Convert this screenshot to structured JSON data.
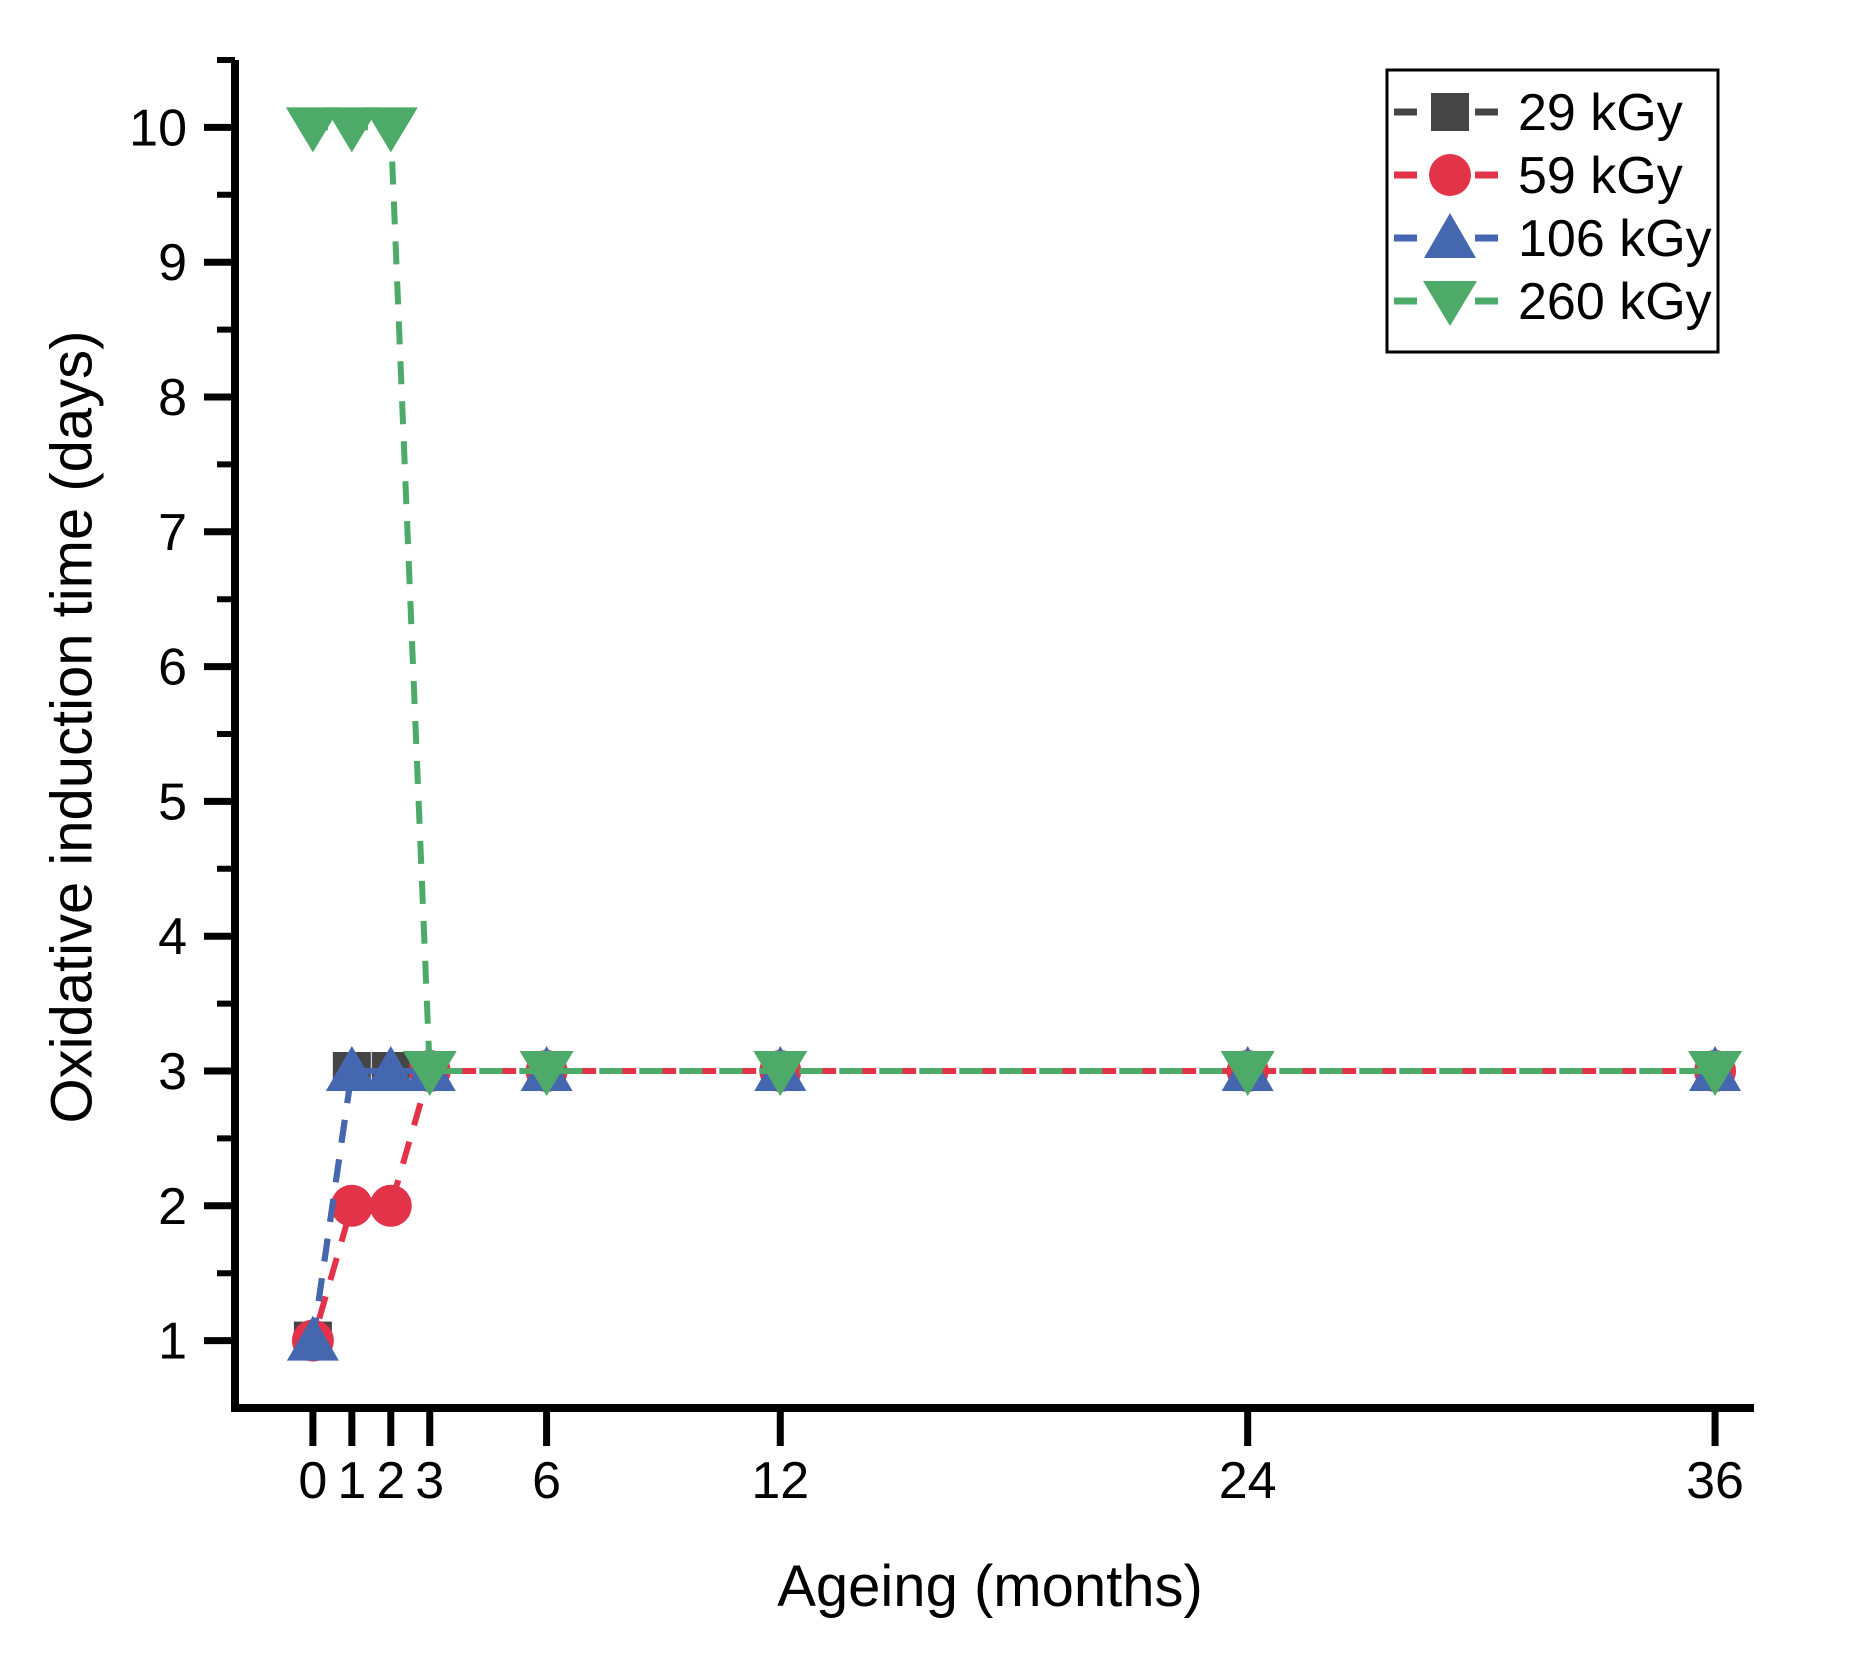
{
  "chart_data": {
    "type": "line",
    "title": "",
    "xlabel": "Ageing (months)",
    "ylabel": "Oxidative induction time (days)",
    "line_style": "dashed",
    "grid": false,
    "background": "#ffffff",
    "axis_color": "#000000",
    "xlim": [
      -2,
      37
    ],
    "ylim": [
      0.5,
      10.5
    ],
    "x_ticks": [
      0,
      1,
      2,
      3,
      6,
      12,
      24,
      36
    ],
    "x_tick_labels": [
      "0",
      "1",
      "2",
      "3",
      "6",
      "12",
      "24",
      "36"
    ],
    "y_ticks": [
      1,
      2,
      3,
      4,
      5,
      6,
      7,
      8,
      9,
      10
    ],
    "y_tick_labels": [
      "1",
      "2",
      "3",
      "4",
      "5",
      "6",
      "7",
      "8",
      "9",
      "10"
    ],
    "y_minor_ticks": [
      1.5,
      2.5,
      3.5,
      4.5,
      5.5,
      6.5,
      7.5,
      8.5,
      9.5,
      10.5
    ],
    "x": [
      0,
      1,
      2,
      3,
      6,
      12,
      24,
      36
    ],
    "series": [
      {
        "name": "29 kGy",
        "color": "#454545",
        "marker": "square",
        "values": [
          1,
          3,
          3,
          3,
          3,
          3,
          3,
          3
        ]
      },
      {
        "name": "59 kGy",
        "color": "#e23349",
        "marker": "circle",
        "values": [
          1,
          2,
          2,
          3,
          3,
          3,
          3,
          3
        ]
      },
      {
        "name": "106 kGy",
        "color": "#4467b0",
        "marker": "triangle-up",
        "values": [
          1,
          3,
          3,
          3,
          3,
          3,
          3,
          3
        ]
      },
      {
        "name": "260 kGy",
        "color": "#4daa68",
        "marker": "triangle-down",
        "values": [
          10,
          10,
          10,
          3,
          3,
          3,
          3,
          3
        ]
      }
    ],
    "legend": {
      "position": "top-right",
      "entries": [
        "29 kGy",
        "59 kGy",
        "106 kGy",
        "260 kGy"
      ]
    }
  }
}
